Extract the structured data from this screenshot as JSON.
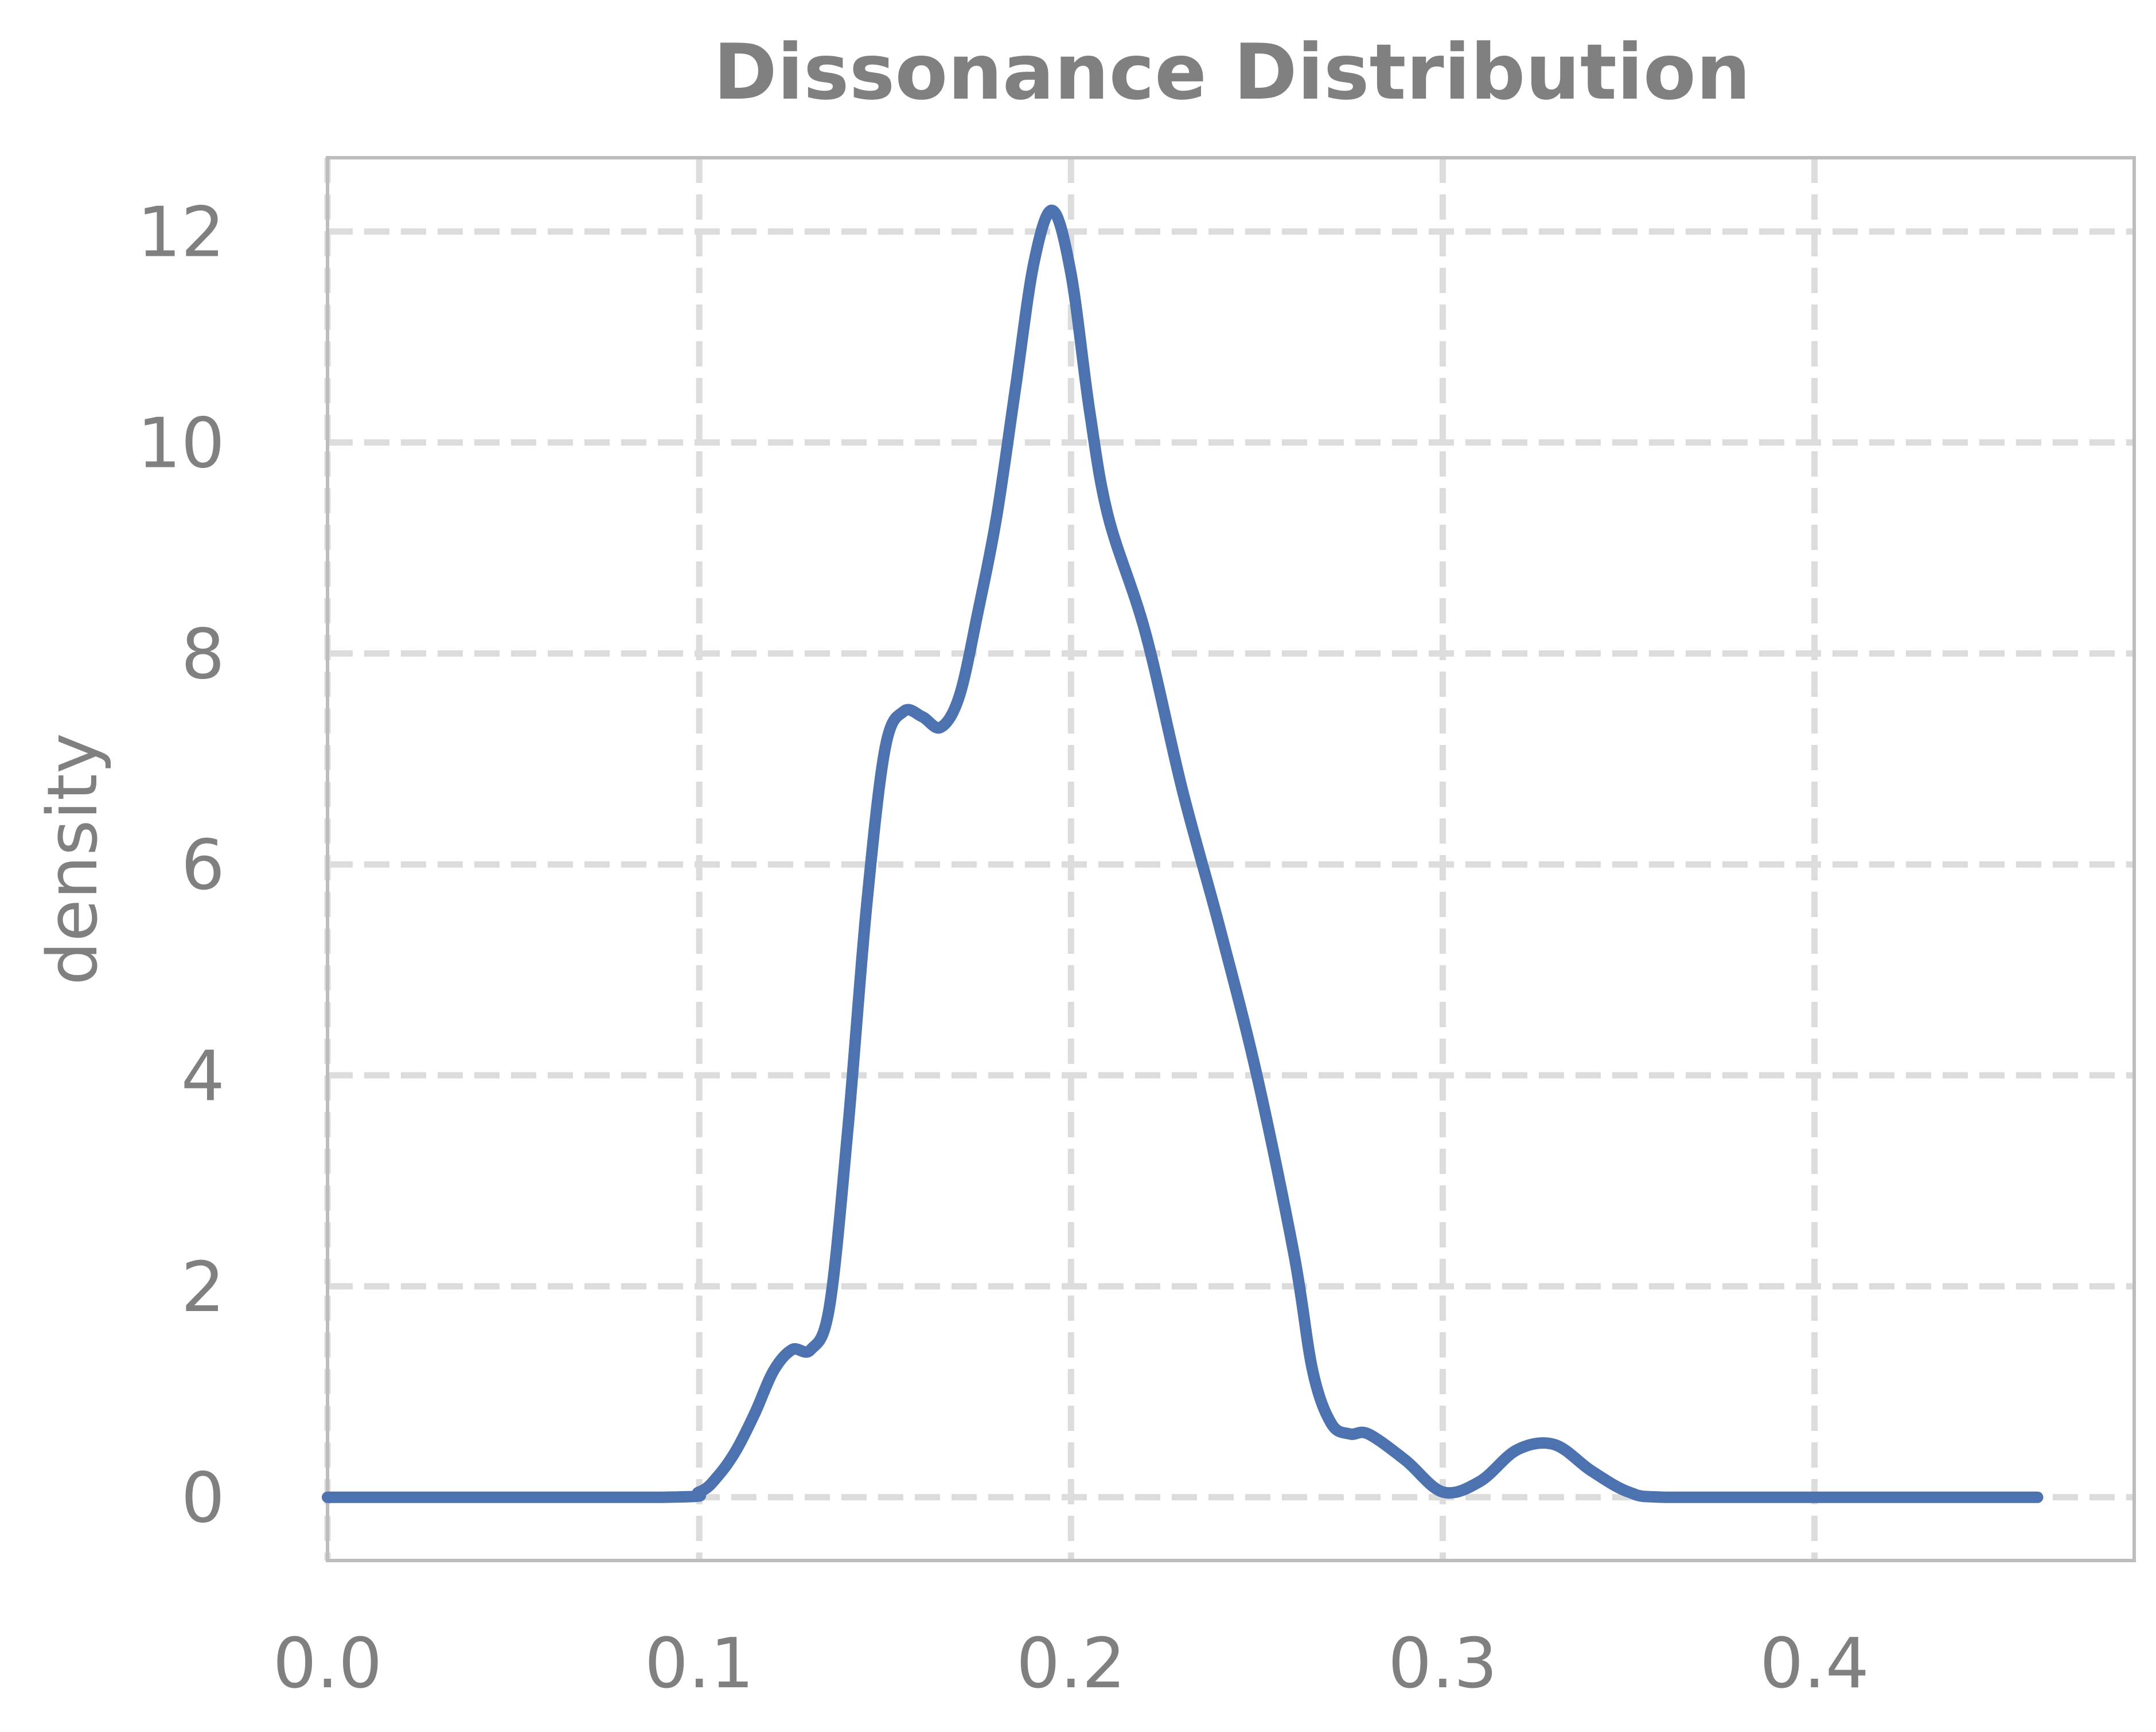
{
  "chart_data": {
    "type": "line",
    "title": "Dissonance Distribution",
    "xlabel": "",
    "ylabel": "density",
    "xlim": [
      0.0,
      0.486
    ],
    "ylim": [
      -0.6,
      12.7
    ],
    "x_ticks": [
      "0.0",
      "0.1",
      "0.2",
      "0.3",
      "0.4"
    ],
    "y_ticks": [
      "0",
      "2",
      "4",
      "6",
      "8",
      "10",
      "12"
    ],
    "grid": true,
    "grid_style": "dashed",
    "line_color": "#4c72b0",
    "series": [
      {
        "points": [
          [
            0.0,
            0.0
          ],
          [
            0.09,
            0.0
          ],
          [
            0.1,
            0.05
          ],
          [
            0.105,
            0.2
          ],
          [
            0.11,
            0.45
          ],
          [
            0.115,
            0.8
          ],
          [
            0.12,
            1.2
          ],
          [
            0.125,
            1.4
          ],
          [
            0.13,
            1.4
          ],
          [
            0.135,
            1.8
          ],
          [
            0.14,
            3.5
          ],
          [
            0.145,
            5.6
          ],
          [
            0.15,
            7.1
          ],
          [
            0.155,
            7.45
          ],
          [
            0.16,
            7.4
          ],
          [
            0.165,
            7.3
          ],
          [
            0.17,
            7.6
          ],
          [
            0.175,
            8.4
          ],
          [
            0.18,
            9.3
          ],
          [
            0.185,
            10.5
          ],
          [
            0.19,
            11.7
          ],
          [
            0.195,
            12.2
          ],
          [
            0.2,
            11.6
          ],
          [
            0.205,
            10.3
          ],
          [
            0.21,
            9.3
          ],
          [
            0.22,
            8.2
          ],
          [
            0.23,
            6.7
          ],
          [
            0.24,
            5.4
          ],
          [
            0.25,
            4.0
          ],
          [
            0.26,
            2.3
          ],
          [
            0.265,
            1.2
          ],
          [
            0.27,
            0.7
          ],
          [
            0.275,
            0.6
          ],
          [
            0.28,
            0.6
          ],
          [
            0.29,
            0.35
          ],
          [
            0.3,
            0.05
          ],
          [
            0.31,
            0.15
          ],
          [
            0.32,
            0.45
          ],
          [
            0.33,
            0.5
          ],
          [
            0.34,
            0.25
          ],
          [
            0.35,
            0.05
          ],
          [
            0.36,
            0.0
          ],
          [
            0.4,
            0.0
          ],
          [
            0.46,
            0.0
          ]
        ]
      }
    ]
  }
}
